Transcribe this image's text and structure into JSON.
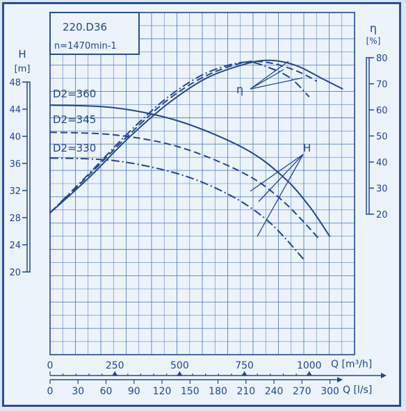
{
  "chart_data": {
    "type": "line",
    "title": "220.D36",
    "subtitle": "n=1470min-1",
    "x_primary": {
      "label": "Q [m³/h]",
      "ticks": [
        "0",
        "250",
        "500",
        "750",
        "1000"
      ],
      "range": [
        0,
        1175
      ]
    },
    "x_secondary": {
      "label": "Q [l/s]",
      "ticks": [
        "0",
        "30",
        "60",
        "90",
        "120",
        "150",
        "180",
        "210",
        "240",
        "270",
        "300"
      ]
    },
    "y_left": {
      "label_symbol": "H",
      "label_unit": "[m]",
      "ticks": [
        "20",
        "24",
        "28",
        "32",
        "36",
        "40",
        "44",
        "48"
      ],
      "range": [
        20,
        48
      ]
    },
    "y_right": {
      "label_symbol": "η",
      "label_unit": "[%]",
      "ticks": [
        "20",
        "30",
        "40",
        "50",
        "60",
        "70",
        "80"
      ],
      "range": [
        20,
        80
      ]
    },
    "grid": true,
    "annotations": {
      "head": "H",
      "efficiency": "η"
    },
    "series": [
      {
        "name": "D2=360",
        "dash": "solid",
        "head_points": [
          [
            0,
            44.6
          ],
          [
            250,
            44.2
          ],
          [
            500,
            42.2
          ],
          [
            750,
            38.2
          ],
          [
            900,
            34.0
          ],
          [
            1000,
            29.7
          ],
          [
            1080,
            25.2
          ]
        ],
        "eff_points": [
          [
            0,
            20.5
          ],
          [
            150,
            34.0
          ],
          [
            300,
            49.0
          ],
          [
            450,
            62.0
          ],
          [
            600,
            72.0
          ],
          [
            750,
            77.5
          ],
          [
            850,
            79.0
          ],
          [
            950,
            77.0
          ],
          [
            1050,
            72.0
          ],
          [
            1130,
            68.0
          ]
        ]
      },
      {
        "name": "D2=345",
        "dash": "dashed",
        "head_points": [
          [
            0,
            40.6
          ],
          [
            250,
            40.2
          ],
          [
            500,
            38.4
          ],
          [
            750,
            34.5
          ],
          [
            900,
            30.4
          ],
          [
            1040,
            24.8
          ]
        ],
        "eff_points": [
          [
            0,
            20.5
          ],
          [
            150,
            35.0
          ],
          [
            300,
            50.0
          ],
          [
            450,
            63.5
          ],
          [
            600,
            73.0
          ],
          [
            750,
            78.2
          ],
          [
            850,
            78.0
          ],
          [
            950,
            75.0
          ],
          [
            1030,
            71.0
          ]
        ]
      },
      {
        "name": "D2=330",
        "dash": "dash-dot",
        "head_points": [
          [
            0,
            36.8
          ],
          [
            250,
            36.4
          ],
          [
            500,
            34.4
          ],
          [
            700,
            31.2
          ],
          [
            850,
            27.2
          ],
          [
            980,
            21.8
          ]
        ],
        "eff_points": [
          [
            0,
            20.5
          ],
          [
            150,
            35.5
          ],
          [
            300,
            51.0
          ],
          [
            450,
            64.5
          ],
          [
            600,
            74.0
          ],
          [
            750,
            78.3
          ],
          [
            850,
            76.0
          ],
          [
            930,
            72.0
          ],
          [
            1000,
            65.0
          ]
        ]
      }
    ]
  }
}
